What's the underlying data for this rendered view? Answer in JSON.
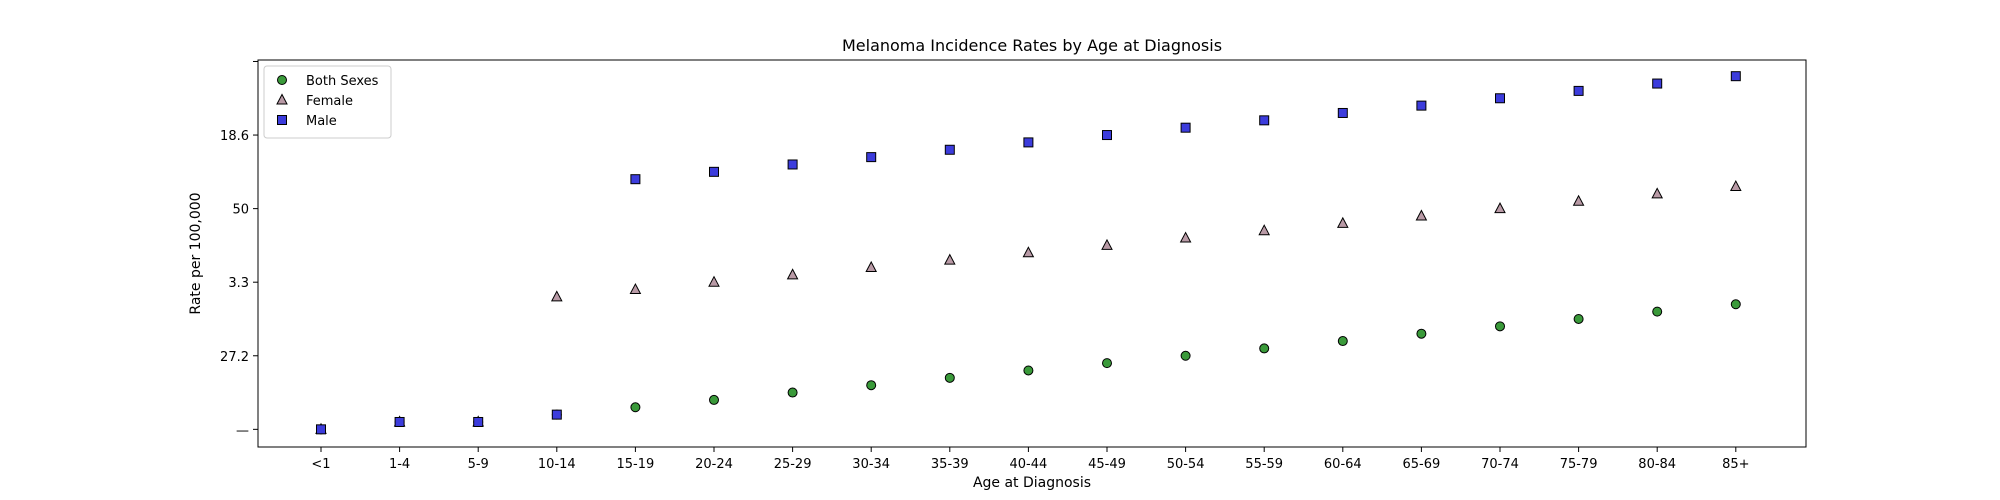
{
  "chart_data": {
    "type": "scatter",
    "title": "Melanoma Incidence Rates by Age at Diagnosis",
    "xlabel": "Age at Diagnosis",
    "ylabel": "Rate per 100,000",
    "categories": [
      "<1",
      "1-4",
      "5-9",
      "10-14",
      "15-19",
      "20-24",
      "25-29",
      "30-34",
      "35-39",
      "40-44",
      "45-49",
      "50-54",
      "55-59",
      "60-64",
      "65-69",
      "70-74",
      "75-79",
      "80-84",
      "85+"
    ],
    "y_ticks": [
      {
        "value": 0,
        "label": "—"
      },
      {
        "value": 1,
        "label": "27.2"
      },
      {
        "value": 2,
        "label": "3.3"
      },
      {
        "value": 3,
        "label": "50"
      },
      {
        "value": 4,
        "label": "18.6"
      },
      {
        "value": 5,
        "label": ""
      }
    ],
    "ylim": [
      -0.24,
      5.02
    ],
    "legend_position": "upper left",
    "grid": false,
    "series": [
      {
        "name": "Both Sexes",
        "marker": "circle",
        "color": "#3a9a3a",
        "values": [
          0,
          0.1,
          0.1,
          0.2,
          0.3,
          0.4,
          0.5,
          0.6,
          0.7,
          0.8,
          0.9,
          1.0,
          1.1,
          1.2,
          1.3,
          1.4,
          1.5,
          1.6,
          1.7
        ]
      },
      {
        "name": "Female",
        "marker": "triangle",
        "color": "#b99aa6",
        "values": [
          0,
          0.1,
          0.1,
          1.8,
          1.9,
          2.0,
          2.1,
          2.2,
          2.3,
          2.4,
          2.5,
          2.6,
          2.7,
          2.8,
          2.9,
          3.0,
          3.1,
          3.2,
          3.3
        ]
      },
      {
        "name": "Male",
        "marker": "square",
        "color": "#3c3cdc",
        "values": [
          0,
          0.1,
          0.1,
          0.2,
          3.4,
          3.5,
          3.6,
          3.7,
          3.8,
          3.9,
          4.0,
          4.1,
          4.2,
          4.3,
          4.4,
          4.5,
          4.6,
          4.7,
          4.8
        ]
      }
    ]
  }
}
